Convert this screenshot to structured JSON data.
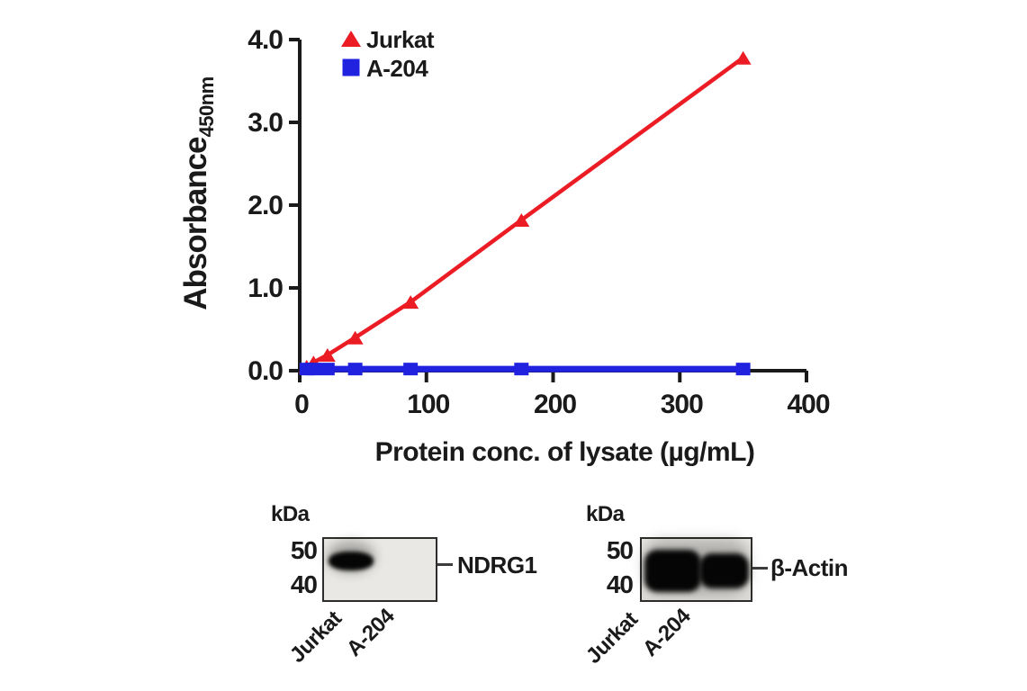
{
  "figure": {
    "background": "#ffffff",
    "text_color": "#1a1a1a"
  },
  "chart_data": {
    "type": "line",
    "title": "",
    "xlabel": "Protein conc. of lysate (µg/mL)",
    "ylabel": "Absorbance",
    "ylabel_subscript": "450nm",
    "xlim": [
      0,
      400
    ],
    "ylim": [
      0,
      4.0
    ],
    "x_ticks": [
      "0",
      "100",
      "200",
      "300",
      "400"
    ],
    "y_ticks": [
      "0.0",
      "1.0",
      "2.0",
      "3.0",
      "4.0"
    ],
    "grid": false,
    "legend_position": "top-left-inside",
    "axis_color": "#1a1a1a",
    "series": [
      {
        "name": "Jurkat",
        "color": "#ec1c24",
        "marker": "triangle",
        "x": [
          5.5,
          10.9,
          21.9,
          43.8,
          87.5,
          175,
          350
        ],
        "y": [
          0.05,
          0.1,
          0.19,
          0.4,
          0.83,
          1.82,
          3.78
        ]
      },
      {
        "name": "A-204",
        "color": "#2121e0",
        "marker": "square",
        "x": [
          5.5,
          10.9,
          21.9,
          43.8,
          87.5,
          175,
          350
        ],
        "y": [
          0.02,
          0.02,
          0.02,
          0.02,
          0.02,
          0.02,
          0.02
        ]
      }
    ]
  },
  "blots": [
    {
      "unit": "kDa",
      "mw_markers": [
        "50",
        "40"
      ],
      "target": "NDRG1",
      "lanes": [
        "Jurkat",
        "A-204"
      ],
      "bands": [
        {
          "lane": "Jurkat",
          "present": true,
          "intensity": "strong"
        },
        {
          "lane": "A-204",
          "present": false,
          "intensity": "none"
        }
      ]
    },
    {
      "unit": "kDa",
      "mw_markers": [
        "50",
        "40"
      ],
      "target": "β-Actin",
      "lanes": [
        "Jurkat",
        "A-204"
      ],
      "bands": [
        {
          "lane": "Jurkat",
          "present": true,
          "intensity": "very strong"
        },
        {
          "lane": "A-204",
          "present": true,
          "intensity": "very strong"
        }
      ]
    }
  ]
}
